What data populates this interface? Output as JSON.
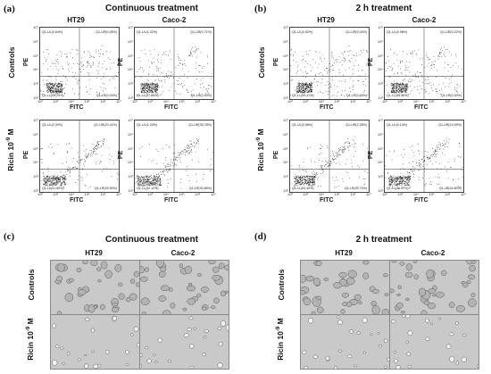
{
  "panels": {
    "a": {
      "letter": "(a)",
      "title": "Continuous treatment"
    },
    "b": {
      "letter": "(b)",
      "title": "2 h treatment"
    },
    "c": {
      "letter": "(c)",
      "title": "Continuous treatment"
    },
    "d": {
      "letter": "(d)",
      "title": "2 h treatment"
    }
  },
  "columns": {
    "left": "HT29",
    "right": "Caco-2"
  },
  "rows": {
    "controls": "Controls",
    "ricin_prefix": "Ricin 10",
    "ricin_exp": "-9",
    "ricin_suffix": " M"
  },
  "axes": {
    "x": "FITC",
    "y": "PE",
    "ticks": [
      "10²",
      "10³",
      "10⁴",
      "10⁵",
      "10⁶",
      "10⁷"
    ]
  },
  "flow_plots": [
    {
      "id": "a-ht29-ctrl",
      "ul": "Q1-UL(0.64%)",
      "ur": "Q1-UR(0.05%)",
      "ll": "Q1-LL(99.29%)",
      "lr": "Q1-LR(0.04%)",
      "spread": 0.2
    },
    {
      "id": "a-caco-ctrl",
      "ul": "Q1-UL(1.02%)",
      "ur": "Q1-UR(0.71%)",
      "ll": "Q1-LL(97.88%)",
      "lr": "Q1-LR(0.40%)",
      "spread": 0.35
    },
    {
      "id": "b-ht29-ctrl",
      "ul": "Q1-UL(0.52%)",
      "ur": "Q1-UR(0.04%)",
      "ll": "Q1-LL(99.41%)",
      "lr": "Q1-LR(0.03%)",
      "spread": 0.2
    },
    {
      "id": "b-caco-ctrl",
      "ul": "Q1-UL(0.98%)",
      "ur": "Q1-UR(0.22%)",
      "ll": "Q1-LL(98.50%)",
      "lr": "Q1-LR(0.30%)",
      "spread": 0.3
    },
    {
      "id": "a-ht29-ricin",
      "ul": "Q1-UL(2.00%)",
      "ur": "Q1-UR(20.41%)",
      "ll": "Q1-LL(41.69%)",
      "lr": "Q1-LR(35.90%)",
      "spread": 1.0
    },
    {
      "id": "a-caco-ricin",
      "ul": "Q1-UL(1.20%)",
      "ur": "Q1-UR(35.78%)",
      "ll": "Q1-LL(32.12%)",
      "lr": "Q1-LR(30.88%)",
      "spread": 1.2
    },
    {
      "id": "b-ht29-ricin",
      "ul": "Q1-UL(0.58%)",
      "ur": "Q1-UR(2.28%)",
      "ll": "Q1-LL(54.40%)",
      "lr": "Q1-LR(42.74%)",
      "spread": 0.8
    },
    {
      "id": "b-caco-ricin",
      "ul": "Q1-UL(0.14%)",
      "ur": "Q1-UR(14.09%)",
      "ll": "Q1-LL(40.97%)",
      "lr": "Q1-LR(44.80%)",
      "spread": 0.9
    }
  ],
  "colors": {
    "dots": "#1a1a1a",
    "gate": "#555555",
    "micro_bg": "#c9c9c9",
    "cell": "#8a8a8a"
  }
}
